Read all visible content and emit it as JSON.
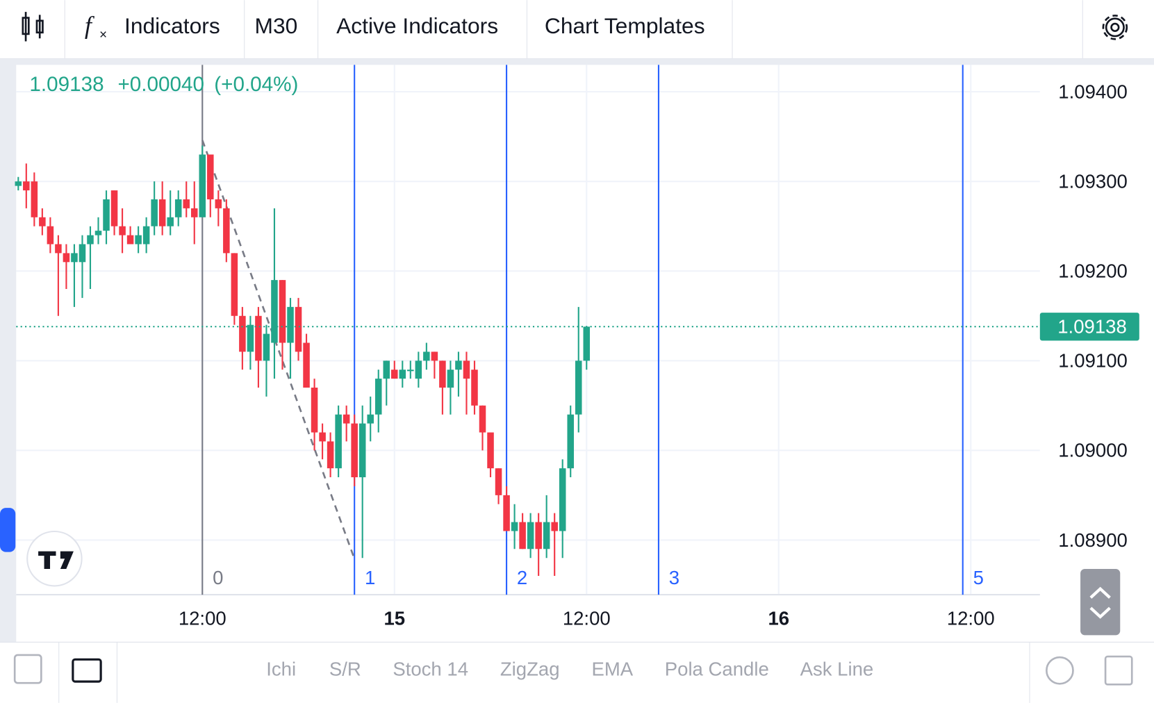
{
  "toolbar": {
    "items": [
      "Indicators",
      "M30",
      "Active Indicators",
      "Chart Templates"
    ]
  },
  "bottom_bar": {
    "items": [
      "Ichi",
      "S/R",
      "Stoch 14",
      "ZigZag",
      "EMA",
      "Pola Candle",
      "Ask Line"
    ]
  },
  "chart_data": {
    "type": "candlestick",
    "up_color": "#22a58a",
    "down_color": "#f23645",
    "last_price": 1.09138,
    "change": "+0.00040",
    "change_pct": "(+0.04%)",
    "xlim": [
      0.37,
      64.32
    ],
    "ylim": [
      1.08839,
      1.0943
    ],
    "xticks": [
      {
        "value": 12,
        "label": "12:00"
      },
      {
        "value": 24,
        "label": "15"
      },
      {
        "value": 36,
        "label": "12:00"
      },
      {
        "value": 48,
        "label": "16"
      },
      {
        "value": 60,
        "label": "12:00"
      }
    ],
    "yticks": [
      {
        "value": 1.094,
        "label": "1.09400"
      },
      {
        "value": 1.093,
        "label": "1.09300"
      },
      {
        "value": 1.092,
        "label": "1.09200"
      },
      {
        "value": 1.091,
        "label": "1.09100"
      },
      {
        "value": 1.09,
        "label": "1.09000"
      },
      {
        "value": 1.089,
        "label": "1.08900"
      }
    ],
    "grid": true,
    "x": [
      0.5,
      1,
      1.5,
      2,
      2.5,
      3,
      3.5,
      4,
      4.5,
      5,
      5.5,
      6,
      6.5,
      7,
      7.5,
      8,
      8.5,
      9,
      9.5,
      10,
      10.5,
      11,
      11.5,
      12,
      12.5,
      13,
      13.5,
      14,
      14.5,
      15,
      15.5,
      16,
      16.5,
      17,
      17.5,
      18,
      18.5,
      19,
      19.5,
      20,
      20.5,
      21,
      21.5,
      22,
      22.5,
      23,
      23.5,
      24,
      24.5,
      25,
      25.5,
      26,
      26.5,
      27,
      27.5,
      28,
      28.5,
      29,
      29.5,
      30,
      30.5,
      31,
      31.5,
      32,
      32.5,
      33,
      33.5,
      34,
      34.5,
      35,
      35.5,
      36
    ],
    "open": [
      1.09295,
      1.093,
      1.093,
      1.0926,
      1.0925,
      1.0923,
      1.0922,
      1.0921,
      1.0921,
      1.0923,
      1.0924,
      1.09245,
      1.0929,
      1.0925,
      1.0924,
      1.0923,
      1.0923,
      1.0925,
      1.0928,
      1.0925,
      1.0926,
      1.0928,
      1.0927,
      1.0926,
      1.0933,
      1.0928,
      1.0927,
      1.0922,
      1.0915,
      1.0911,
      1.0915,
      1.091,
      1.0912,
      1.0919,
      1.0912,
      1.0916,
      1.0912,
      1.0907,
      1.0902,
      1.0901,
      1.0898,
      1.0904,
      1.0903,
      1.0897,
      1.0903,
      1.0904,
      1.0908,
      1.0909,
      1.0908,
      1.0909,
      1.0908,
      1.091,
      1.0911,
      1.091,
      1.0907,
      1.0909,
      1.091,
      1.0909,
      1.0905,
      1.0902,
      1.0898,
      1.0895,
      1.0891,
      1.0892,
      1.0889,
      1.0892,
      1.0889,
      1.0892,
      1.0891,
      1.0898,
      1.0904,
      1.091
    ],
    "high": [
      1.09305,
      1.0932,
      1.0931,
      1.0927,
      1.0926,
      1.0924,
      1.0923,
      1.0923,
      1.0924,
      1.0925,
      1.0926,
      1.0929,
      1.0929,
      1.0927,
      1.0925,
      1.0925,
      1.0926,
      1.093,
      1.093,
      1.0929,
      1.0929,
      1.093,
      1.093,
      1.0934,
      1.0933,
      1.0929,
      1.0928,
      1.0922,
      1.0916,
      1.0915,
      1.0916,
      1.0914,
      1.0927,
      1.0919,
      1.0917,
      1.0917,
      1.0913,
      1.0908,
      1.0903,
      1.0902,
      1.0905,
      1.0905,
      1.0904,
      1.0905,
      1.0906,
      1.0909,
      1.091,
      1.091,
      1.091,
      1.091,
      1.0911,
      1.0912,
      1.0911,
      1.091,
      1.091,
      1.0911,
      1.0911,
      1.091,
      1.0905,
      1.0902,
      1.0898,
      1.0896,
      1.0894,
      1.0893,
      1.0893,
      1.0893,
      1.0895,
      1.0893,
      1.0899,
      1.0905,
      1.0916,
      1.09138
    ],
    "low": [
      1.0929,
      1.0927,
      1.0925,
      1.0924,
      1.0922,
      1.0915,
      1.0918,
      1.0916,
      1.0917,
      1.0918,
      1.0923,
      1.0923,
      1.0924,
      1.0922,
      1.0923,
      1.0922,
      1.0922,
      1.0924,
      1.0924,
      1.0924,
      1.0925,
      1.0926,
      1.0923,
      1.0926,
      1.0926,
      1.0925,
      1.0921,
      1.0914,
      1.0909,
      1.0909,
      1.0907,
      1.0906,
      1.0908,
      1.0909,
      1.0908,
      1.091,
      1.0907,
      1.09,
      1.0899,
      1.0897,
      1.0897,
      1.0901,
      1.0896,
      1.0888,
      1.0901,
      1.0902,
      1.0905,
      1.0908,
      1.0907,
      1.0908,
      1.0907,
      1.0909,
      1.0908,
      1.0904,
      1.0904,
      1.0906,
      1.0904,
      1.0904,
      1.09,
      1.0897,
      1.0894,
      1.0891,
      1.0889,
      1.0889,
      1.0888,
      1.0886,
      1.0888,
      1.0886,
      1.0888,
      1.0897,
      1.0902,
      1.0909
    ],
    "close": [
      1.093,
      1.0929,
      1.0926,
      1.0925,
      1.0923,
      1.0922,
      1.0921,
      1.0922,
      1.0923,
      1.0924,
      1.09245,
      1.0928,
      1.0925,
      1.0924,
      1.0923,
      1.0924,
      1.0925,
      1.0928,
      1.0925,
      1.0926,
      1.0928,
      1.0927,
      1.0926,
      1.0933,
      1.0928,
      1.0927,
      1.0922,
      1.0915,
      1.0911,
      1.0914,
      1.091,
      1.0913,
      1.0919,
      1.0912,
      1.0916,
      1.0911,
      1.0907,
      1.0902,
      1.0901,
      1.0898,
      1.0904,
      1.0903,
      1.0897,
      1.0903,
      1.0904,
      1.0908,
      1.091,
      1.0908,
      1.0909,
      1.0909,
      1.091,
      1.0911,
      1.091,
      1.0907,
      1.0909,
      1.091,
      1.0908,
      1.0905,
      1.0902,
      1.0898,
      1.0895,
      1.0891,
      1.0892,
      1.0889,
      1.0892,
      1.0889,
      1.0892,
      1.0891,
      1.0898,
      1.0904,
      1.091,
      1.09138
    ],
    "time_zones": {
      "x": [
        12,
        21.5,
        31,
        40.5,
        59.5
      ],
      "labels": [
        0,
        1,
        2,
        3,
        5
      ]
    },
    "trend_line": {
      "x": [
        12,
        21.5
      ],
      "y": [
        1.09346,
        1.08879
      ]
    }
  }
}
